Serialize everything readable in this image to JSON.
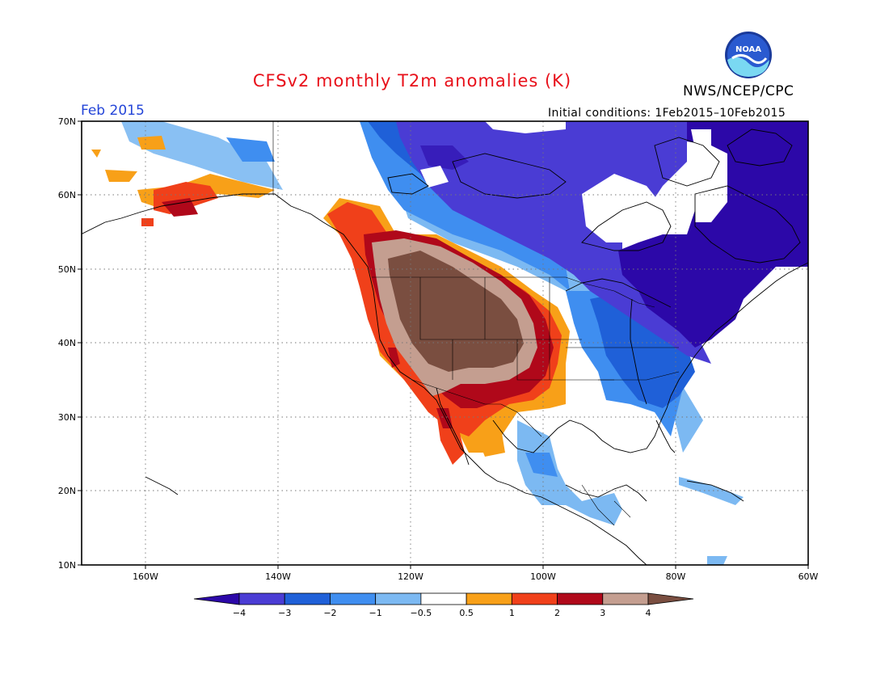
{
  "header": {
    "title": "CFSv2 monthly T2m anomalies (K)",
    "agency": "NWS/NCEP/CPC",
    "logo_text": "NOAA",
    "valid_month": "Feb 2015",
    "initial_conditions": "Initial conditions: 1Feb2015–10Feb2015"
  },
  "map": {
    "lat_labels": [
      "70N",
      "60N",
      "50N",
      "40N",
      "30N",
      "20N",
      "10N"
    ],
    "lon_labels": [
      "160W",
      "140W",
      "120W",
      "100W",
      "80W",
      "60W"
    ]
  },
  "legend": {
    "labels": [
      "−4",
      "−3",
      "−2",
      "−1",
      "−0.5",
      "0.5",
      "1",
      "2",
      "3",
      "4"
    ],
    "colors": [
      "#2c08a8",
      "#4a3cd4",
      "#1f60d8",
      "#3f8ef0",
      "#7cb9f2",
      "#ffffff",
      "#f8a018",
      "#f0401a",
      "#b0081a",
      "#c49e90",
      "#7a4e40"
    ]
  }
}
